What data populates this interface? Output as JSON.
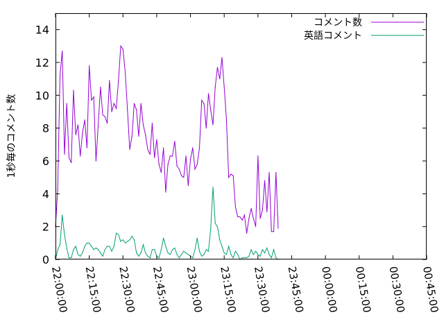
{
  "chart_data": {
    "type": "line",
    "title": "",
    "xlabel": "",
    "ylabel": "1秒毎のコメント数",
    "xlim_minutes": [
      0,
      165
    ],
    "ylim": [
      0,
      15
    ],
    "yticks": [
      0,
      2,
      4,
      6,
      8,
      10,
      12,
      14
    ],
    "xticks": [
      {
        "m": 0,
        "label": "22:00:00"
      },
      {
        "m": 15,
        "label": "22:15:00"
      },
      {
        "m": 30,
        "label": "22:30:00"
      },
      {
        "m": 45,
        "label": "22:45:00"
      },
      {
        "m": 60,
        "label": "23:00:00"
      },
      {
        "m": 75,
        "label": "23:15:00"
      },
      {
        "m": 90,
        "label": "23:30:00"
      },
      {
        "m": 105,
        "label": "23:45:00"
      },
      {
        "m": 120,
        "label": "00:00:00"
      },
      {
        "m": 135,
        "label": "00:15:00"
      },
      {
        "m": 150,
        "label": "00:30:00"
      },
      {
        "m": 165,
        "label": "00:45:00"
      }
    ],
    "grid": false,
    "legend_position": "top-right",
    "series": [
      {
        "name": "コメント数",
        "color": "#9400d3",
        "points": [
          [
            0,
            2.0
          ],
          [
            1,
            4.3
          ],
          [
            2,
            11.2
          ],
          [
            3,
            12.7
          ],
          [
            4,
            6.4
          ],
          [
            5,
            9.5
          ],
          [
            6,
            6.2
          ],
          [
            7,
            5.9
          ],
          [
            8,
            10.3
          ],
          [
            9,
            7.6
          ],
          [
            10,
            8.2
          ],
          [
            11,
            6.3
          ],
          [
            12,
            7.7
          ],
          [
            13,
            8.5
          ],
          [
            14,
            6.8
          ],
          [
            15,
            11.8
          ],
          [
            16,
            9.7
          ],
          [
            17,
            9.9
          ],
          [
            18,
            6.0
          ],
          [
            19,
            8.2
          ],
          [
            20,
            10.5
          ],
          [
            21,
            8.8
          ],
          [
            22,
            8.7
          ],
          [
            23,
            8.3
          ],
          [
            24,
            10.9
          ],
          [
            25,
            9.0
          ],
          [
            26,
            9.5
          ],
          [
            27,
            9.2
          ],
          [
            28,
            10.9
          ],
          [
            29,
            13.0
          ],
          [
            30,
            12.8
          ],
          [
            31,
            11.4
          ],
          [
            32,
            9.1
          ],
          [
            33,
            6.7
          ],
          [
            34,
            7.5
          ],
          [
            35,
            9.5
          ],
          [
            36,
            9.1
          ],
          [
            37,
            7.5
          ],
          [
            38,
            9.5
          ],
          [
            39,
            8.2
          ],
          [
            40,
            7.6
          ],
          [
            41,
            6.7
          ],
          [
            42,
            6.4
          ],
          [
            43,
            8.3
          ],
          [
            44,
            6.2
          ],
          [
            45,
            7.3
          ],
          [
            46,
            5.8
          ],
          [
            47,
            5.3
          ],
          [
            48,
            6.8
          ],
          [
            49,
            4.1
          ],
          [
            50,
            5.8
          ],
          [
            51,
            6.3
          ],
          [
            52,
            6.3
          ],
          [
            53,
            7.2
          ],
          [
            54,
            5.7
          ],
          [
            55,
            5.5
          ],
          [
            56,
            5.1
          ],
          [
            57,
            5.0
          ],
          [
            58,
            6.3
          ],
          [
            59,
            4.5
          ],
          [
            60,
            6.1
          ],
          [
            61,
            6.8
          ],
          [
            62,
            5.5
          ],
          [
            63,
            5.8
          ],
          [
            64,
            6.8
          ],
          [
            65,
            9.7
          ],
          [
            66,
            9.5
          ],
          [
            67,
            8.0
          ],
          [
            68,
            10.1
          ],
          [
            69,
            9.1
          ],
          [
            70,
            8.2
          ],
          [
            71,
            10.5
          ],
          [
            72,
            11.7
          ],
          [
            73,
            11.0
          ],
          [
            74,
            12.3
          ],
          [
            75,
            10.5
          ],
          [
            76,
            8.5
          ],
          [
            77,
            5.0
          ],
          [
            78,
            5.2
          ],
          [
            79,
            5.1
          ],
          [
            80,
            3.2
          ],
          [
            81,
            2.6
          ],
          [
            82,
            2.6
          ],
          [
            83,
            2.4
          ],
          [
            84,
            2.7
          ],
          [
            85,
            1.6
          ],
          [
            86,
            2.5
          ],
          [
            87,
            3.1
          ],
          [
            88,
            2.5
          ],
          [
            89,
            2.0
          ],
          [
            90,
            6.3
          ],
          [
            91,
            2.5
          ],
          [
            92,
            3.0
          ],
          [
            93,
            4.8
          ],
          [
            94,
            2.9
          ],
          [
            95,
            5.3
          ],
          [
            96,
            1.7
          ],
          [
            97,
            1.7
          ],
          [
            98,
            5.3
          ],
          [
            99,
            1.9
          ]
        ]
      },
      {
        "name": "英語コメント",
        "color": "#009e73",
        "points": [
          [
            0,
            0.0
          ],
          [
            1,
            0.6
          ],
          [
            2,
            0.9
          ],
          [
            3,
            2.7
          ],
          [
            4,
            1.5
          ],
          [
            5,
            0.7
          ],
          [
            6,
            0.1
          ],
          [
            7,
            0.1
          ],
          [
            8,
            0.6
          ],
          [
            9,
            0.8
          ],
          [
            10,
            0.3
          ],
          [
            11,
            0.2
          ],
          [
            12,
            0.4
          ],
          [
            13,
            0.8
          ],
          [
            14,
            1.0
          ],
          [
            15,
            1.0
          ],
          [
            16,
            0.8
          ],
          [
            17,
            0.6
          ],
          [
            18,
            0.7
          ],
          [
            19,
            0.6
          ],
          [
            20,
            0.4
          ],
          [
            21,
            0.2
          ],
          [
            22,
            0.6
          ],
          [
            23,
            0.8
          ],
          [
            24,
            0.8
          ],
          [
            25,
            0.5
          ],
          [
            26,
            0.8
          ],
          [
            27,
            1.6
          ],
          [
            28,
            1.5
          ],
          [
            29,
            1.1
          ],
          [
            30,
            1.2
          ],
          [
            31,
            1.0
          ],
          [
            32,
            1.1
          ],
          [
            33,
            1.2
          ],
          [
            34,
            1.4
          ],
          [
            35,
            1.2
          ],
          [
            36,
            0.4
          ],
          [
            37,
            0.2
          ],
          [
            38,
            0.4
          ],
          [
            39,
            0.9
          ],
          [
            40,
            0.4
          ],
          [
            41,
            0.2
          ],
          [
            42,
            0.1
          ],
          [
            43,
            0.6
          ],
          [
            44,
            0.6
          ],
          [
            45,
            0.2
          ],
          [
            46,
            0.1
          ],
          [
            47,
            0.6
          ],
          [
            48,
            1.3
          ],
          [
            49,
            0.8
          ],
          [
            50,
            0.4
          ],
          [
            51,
            0.3
          ],
          [
            52,
            0.6
          ],
          [
            53,
            0.7
          ],
          [
            54,
            0.3
          ],
          [
            55,
            0.1
          ],
          [
            56,
            0.3
          ],
          [
            57,
            0.5
          ],
          [
            58,
            0.4
          ],
          [
            59,
            0.3
          ],
          [
            60,
            0.2
          ],
          [
            61,
            0.1
          ],
          [
            62,
            0.6
          ],
          [
            63,
            1.3
          ],
          [
            64,
            0.5
          ],
          [
            65,
            0.2
          ],
          [
            66,
            0.3
          ],
          [
            67,
            0.6
          ],
          [
            68,
            0.5
          ],
          [
            69,
            1.9
          ],
          [
            70,
            4.4
          ],
          [
            71,
            2.2
          ],
          [
            72,
            2.0
          ],
          [
            73,
            1.2
          ],
          [
            74,
            0.8
          ],
          [
            75,
            0.4
          ],
          [
            76,
            0.3
          ],
          [
            77,
            0.8
          ],
          [
            78,
            0.3
          ],
          [
            79,
            0.1
          ],
          [
            80,
            0.5
          ],
          [
            81,
            0.3
          ],
          [
            82,
            0.0
          ],
          [
            83,
            0.1
          ],
          [
            84,
            0.1
          ],
          [
            85,
            0.1
          ],
          [
            86,
            0.2
          ],
          [
            87,
            0.6
          ],
          [
            88,
            0.3
          ],
          [
            89,
            0.5
          ],
          [
            90,
            0.3
          ],
          [
            91,
            0.2
          ],
          [
            92,
            0.6
          ],
          [
            93,
            0.4
          ],
          [
            94,
            0.7
          ],
          [
            95,
            0.3
          ],
          [
            96,
            0.1
          ],
          [
            97,
            0.6
          ],
          [
            98,
            0.1
          ],
          [
            99,
            0.0
          ]
        ]
      }
    ]
  }
}
